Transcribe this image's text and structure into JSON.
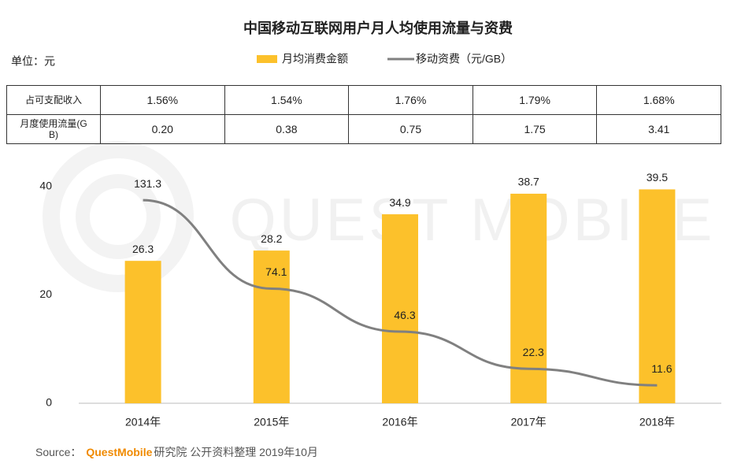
{
  "chart_data": {
    "type": "bar-line",
    "title": "中国移动互联网用户月人均使用流量与资费",
    "unit_label": "单位：元",
    "watermark": "QUEST MOBILE",
    "categories": [
      "2014年",
      "2015年",
      "2016年",
      "2017年",
      "2018年"
    ],
    "series": [
      {
        "name": "月均消费金额",
        "type": "bar",
        "color": "#fcc12b",
        "values": [
          26.3,
          28.2,
          34.9,
          38.7,
          39.5
        ]
      },
      {
        "name": "移动资费（元/GB）",
        "type": "line",
        "axis": "y2",
        "color": "#808080",
        "values": [
          131.3,
          74.1,
          46.3,
          22.3,
          11.6
        ]
      }
    ],
    "ylim": [
      0,
      40
    ],
    "yticks": [
      0,
      20,
      40
    ],
    "y2lim": [
      0,
      140
    ],
    "table": {
      "rows": [
        {
          "label": "占可支配收入",
          "values": [
            "1.56%",
            "1.54%",
            "1.76%",
            "1.79%",
            "1.68%"
          ]
        },
        {
          "label": "月度使用流量(GB)",
          "values": [
            "0.20",
            "0.38",
            "0.75",
            "1.75",
            "3.41"
          ]
        }
      ]
    },
    "source": {
      "prefix": "Source：",
      "brand": "QuestMobile",
      "text": "研究院 公开资料整理 2019年10月"
    }
  }
}
